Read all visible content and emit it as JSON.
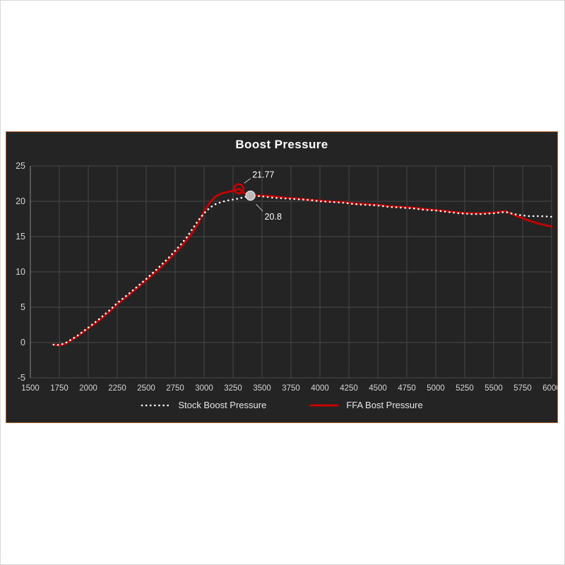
{
  "page": {
    "background": "#ffffff",
    "frame_border": "#d9d9d9"
  },
  "panel": {
    "background": "#242424",
    "border_color": "#a85a28",
    "grid_color": "#474747",
    "axis_line_color": "#8a8a8a",
    "axis_text_color": "#d4d4d4",
    "annotation_text_color": "#ffffff",
    "leader_line_color": "#bdbdbd"
  },
  "chart_data": {
    "type": "line",
    "title": "Boost Pressure",
    "xlabel": "",
    "ylabel": "",
    "grid": true,
    "legend_position": "bottom",
    "x_axis": {
      "min": 1500,
      "max": 6000,
      "tick_step": 250,
      "ticks": [
        1500,
        1750,
        2000,
        2250,
        2500,
        2750,
        3000,
        3250,
        3500,
        3750,
        4000,
        4250,
        4500,
        4750,
        5000,
        5250,
        5500,
        5750,
        6000
      ]
    },
    "y_axis": {
      "min": -5,
      "max": 25,
      "tick_step": 5,
      "ticks": [
        25,
        20,
        15,
        10,
        5,
        0,
        -5
      ]
    },
    "series": [
      {
        "name": "Stock Boost Pressure",
        "style": "dotted",
        "color": "#ffffff",
        "points": [
          [
            1700,
            -0.3
          ],
          [
            1750,
            -0.35
          ],
          [
            1800,
            -0.1
          ],
          [
            1900,
            0.9
          ],
          [
            2000,
            2.1
          ],
          [
            2100,
            3.4
          ],
          [
            2200,
            4.8
          ],
          [
            2250,
            5.6
          ],
          [
            2350,
            6.9
          ],
          [
            2500,
            9.0
          ],
          [
            2600,
            10.5
          ],
          [
            2700,
            12.1
          ],
          [
            2750,
            13.0
          ],
          [
            2800,
            13.9
          ],
          [
            2850,
            14.9
          ],
          [
            2900,
            16.1
          ],
          [
            2950,
            17.3
          ],
          [
            3000,
            18.3
          ],
          [
            3050,
            19.1
          ],
          [
            3100,
            19.6
          ],
          [
            3150,
            19.9
          ],
          [
            3200,
            20.1
          ],
          [
            3300,
            20.4
          ],
          [
            3400,
            20.8
          ],
          [
            3500,
            20.7
          ],
          [
            3600,
            20.5
          ],
          [
            3700,
            20.4
          ],
          [
            3800,
            20.3
          ],
          [
            3900,
            20.2
          ],
          [
            4000,
            20.0
          ],
          [
            4100,
            19.9
          ],
          [
            4200,
            19.8
          ],
          [
            4300,
            19.6
          ],
          [
            4400,
            19.5
          ],
          [
            4500,
            19.4
          ],
          [
            4600,
            19.2
          ],
          [
            4700,
            19.1
          ],
          [
            4800,
            19.0
          ],
          [
            4900,
            18.8
          ],
          [
            5000,
            18.7
          ],
          [
            5100,
            18.5
          ],
          [
            5200,
            18.3
          ],
          [
            5300,
            18.2
          ],
          [
            5400,
            18.2
          ],
          [
            5500,
            18.3
          ],
          [
            5600,
            18.5
          ],
          [
            5700,
            18.1
          ],
          [
            5800,
            17.9
          ],
          [
            5900,
            17.9
          ],
          [
            6000,
            17.8
          ]
        ]
      },
      {
        "name": "FFA Bost Pressure",
        "style": "solid",
        "color": "#c90000",
        "points": [
          [
            1700,
            -0.3
          ],
          [
            1750,
            -0.4
          ],
          [
            1800,
            -0.2
          ],
          [
            1900,
            0.8
          ],
          [
            2000,
            2.0
          ],
          [
            2100,
            3.2
          ],
          [
            2200,
            4.6
          ],
          [
            2250,
            5.4
          ],
          [
            2350,
            6.7
          ],
          [
            2500,
            8.8
          ],
          [
            2600,
            10.2
          ],
          [
            2700,
            11.8
          ],
          [
            2750,
            12.7
          ],
          [
            2800,
            13.5
          ],
          [
            2850,
            14.5
          ],
          [
            2900,
            15.6
          ],
          [
            2950,
            16.9
          ],
          [
            3000,
            18.6
          ],
          [
            3050,
            19.8
          ],
          [
            3100,
            20.7
          ],
          [
            3150,
            21.1
          ],
          [
            3200,
            21.3
          ],
          [
            3250,
            21.5
          ],
          [
            3300,
            21.77
          ],
          [
            3350,
            21.1
          ],
          [
            3400,
            20.9
          ],
          [
            3450,
            20.8
          ],
          [
            3500,
            20.8
          ],
          [
            3600,
            20.7
          ],
          [
            3700,
            20.5
          ],
          [
            3800,
            20.4
          ],
          [
            3900,
            20.2
          ],
          [
            4000,
            20.1
          ],
          [
            4100,
            19.95
          ],
          [
            4200,
            19.9
          ],
          [
            4300,
            19.7
          ],
          [
            4400,
            19.6
          ],
          [
            4500,
            19.5
          ],
          [
            4600,
            19.3
          ],
          [
            4700,
            19.2
          ],
          [
            4800,
            19.1
          ],
          [
            4900,
            18.9
          ],
          [
            5000,
            18.75
          ],
          [
            5100,
            18.6
          ],
          [
            5200,
            18.4
          ],
          [
            5300,
            18.3
          ],
          [
            5400,
            18.3
          ],
          [
            5500,
            18.4
          ],
          [
            5600,
            18.6
          ],
          [
            5700,
            17.9
          ],
          [
            5800,
            17.3
          ],
          [
            5900,
            16.8
          ],
          [
            6000,
            16.4
          ]
        ]
      }
    ],
    "annotations": [
      {
        "label": "21.77",
        "x": 3300,
        "y": 21.77,
        "marker": "open-circle",
        "marker_color": "#c90000",
        "label_offset": [
          19,
          -20
        ]
      },
      {
        "label": "20.8",
        "x": 3400,
        "y": 20.8,
        "marker": "filled-circle",
        "marker_color": "#b9b9b9",
        "label_offset": [
          20,
          30
        ]
      }
    ]
  }
}
